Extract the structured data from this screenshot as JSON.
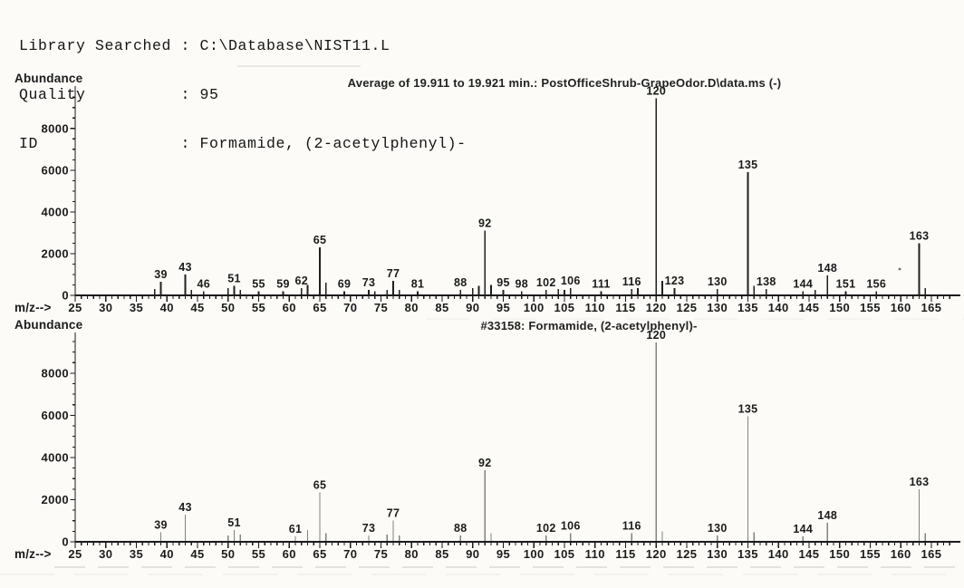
{
  "header": {
    "lines": [
      "Library Searched : C:\\Database\\NIST11.L",
      "Quality          : 95",
      "ID               : Formamide, (2-acetylphenyl)-"
    ],
    "fields": {
      "library_searched": "C:\\Database\\NIST11.L",
      "quality": "95",
      "id": "Formamide, (2-acetylphenyl)-"
    }
  },
  "colors": {
    "paper": "#fcfbf8",
    "ink": "#1b1b1b",
    "sample_peaks": "#1f1f1f",
    "library_peaks": "#828282"
  },
  "chart_data": [
    {
      "type": "bar",
      "role": "sample-spectrum",
      "title": "Average of 19.911 to 19.921 min.: PostOfficeShrub-GrapeOdor.D\\data.ms (-)",
      "xlabel": "m/z-->",
      "ylabel": "Abundance",
      "xlim": [
        25,
        168
      ],
      "ylim": [
        0,
        9900
      ],
      "x_ticks": {
        "start": 25,
        "end": 165,
        "step": 5,
        "minor_step": 1
      },
      "y_ticks": {
        "start": 0,
        "end": 8000,
        "step": 2000,
        "minor_step": 500
      },
      "grid": false,
      "peak_color": "#1f1f1f",
      "peaks": [
        [
          38,
          300
        ],
        [
          39,
          650
        ],
        [
          43,
          1000
        ],
        [
          44,
          250
        ],
        [
          46,
          200
        ],
        [
          50,
          350
        ],
        [
          51,
          450
        ],
        [
          52,
          250
        ],
        [
          55,
          200
        ],
        [
          59,
          200
        ],
        [
          62,
          350
        ],
        [
          63,
          500
        ],
        [
          65,
          2300
        ],
        [
          66,
          600
        ],
        [
          69,
          200
        ],
        [
          73,
          250
        ],
        [
          74,
          200
        ],
        [
          76,
          250
        ],
        [
          77,
          700
        ],
        [
          78,
          250
        ],
        [
          81,
          200
        ],
        [
          88,
          250
        ],
        [
          90,
          350
        ],
        [
          91,
          450
        ],
        [
          92,
          3100
        ],
        [
          93,
          500
        ],
        [
          95,
          250
        ],
        [
          98,
          200
        ],
        [
          102,
          250
        ],
        [
          104,
          300
        ],
        [
          105,
          250
        ],
        [
          106,
          350
        ],
        [
          111,
          200
        ],
        [
          116,
          300
        ],
        [
          117,
          350
        ],
        [
          120,
          9450
        ],
        [
          121,
          700
        ],
        [
          123,
          350
        ],
        [
          130,
          300
        ],
        [
          135,
          5900
        ],
        [
          136,
          450
        ],
        [
          138,
          300
        ],
        [
          144,
          200
        ],
        [
          146,
          250
        ],
        [
          148,
          950
        ],
        [
          151,
          200
        ],
        [
          156,
          200
        ],
        [
          163,
          2500
        ],
        [
          164,
          350
        ]
      ],
      "labeled_peaks": [
        39,
        43,
        46,
        51,
        55,
        59,
        62,
        65,
        69,
        73,
        77,
        81,
        88,
        92,
        95,
        98,
        102,
        106,
        111,
        116,
        120,
        123,
        130,
        135,
        138,
        144,
        148,
        151,
        156,
        163
      ]
    },
    {
      "type": "bar",
      "role": "library-spectrum",
      "title": "#33158: Formamide, (2-acetylphenyl)-",
      "xlabel": "m/z-->",
      "ylabel": "Abundance",
      "xlim": [
        25,
        168
      ],
      "ylim": [
        0,
        9800
      ],
      "x_ticks": {
        "start": 25,
        "end": 165,
        "step": 5,
        "minor_step": 1
      },
      "y_ticks": {
        "start": 0,
        "end": 8000,
        "step": 2000,
        "minor_step": 500
      },
      "grid": false,
      "peak_color": "#828282",
      "peaks": [
        [
          39,
          450
        ],
        [
          43,
          1300
        ],
        [
          50,
          300
        ],
        [
          51,
          550
        ],
        [
          52,
          350
        ],
        [
          61,
          250
        ],
        [
          63,
          550
        ],
        [
          65,
          2350
        ],
        [
          66,
          400
        ],
        [
          73,
          300
        ],
        [
          76,
          350
        ],
        [
          77,
          1000
        ],
        [
          78,
          300
        ],
        [
          88,
          300
        ],
        [
          92,
          3400
        ],
        [
          93,
          400
        ],
        [
          102,
          300
        ],
        [
          106,
          400
        ],
        [
          116,
          400
        ],
        [
          120,
          9450
        ],
        [
          121,
          500
        ],
        [
          130,
          300
        ],
        [
          135,
          5950
        ],
        [
          136,
          450
        ],
        [
          144,
          250
        ],
        [
          148,
          900
        ],
        [
          163,
          2500
        ],
        [
          164,
          400
        ]
      ],
      "labeled_peaks": [
        39,
        43,
        51,
        61,
        65,
        73,
        77,
        88,
        92,
        102,
        106,
        116,
        120,
        130,
        135,
        144,
        148,
        163
      ]
    }
  ]
}
